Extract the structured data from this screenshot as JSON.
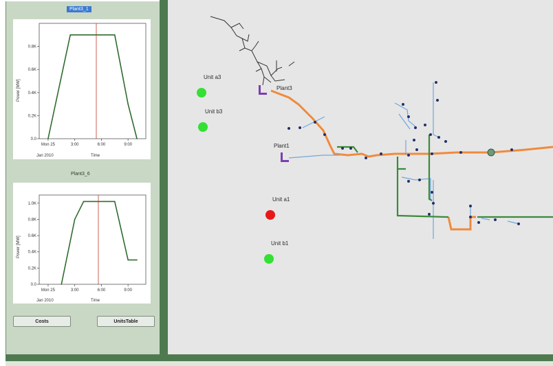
{
  "left_panel": {
    "chart1": {
      "title": "Plant3_1",
      "ylabel": "Power [MW]",
      "y_ticks": [
        "0.8K",
        "0.6K",
        "0.4K",
        "0.2K",
        "0.0"
      ],
      "x_ticks": [
        "Mon 25",
        "3:00",
        "6:00",
        "9:00"
      ],
      "x_sub": "Jan 2010",
      "xlabel": "Time"
    },
    "chart2": {
      "title": "Plant3_6",
      "ylabel": "Power [MW]",
      "y_ticks": [
        "1.0K",
        "0.8K",
        "0.6K",
        "0.4K",
        "0.2K",
        "0.0"
      ],
      "x_ticks": [
        "Mon 25",
        "3:00",
        "6:00",
        "9:00"
      ],
      "x_sub": "Jan 2010",
      "xlabel": "Time"
    },
    "buttons": {
      "costs": "Costs",
      "units_table": "UnitsTable"
    }
  },
  "chart_data": [
    {
      "type": "line",
      "title": "Plant3_1",
      "xlabel": "Time",
      "ylabel": "Power [MW]",
      "x": [
        1.0,
        3.5,
        8.5,
        10.0,
        11.0
      ],
      "series": [
        {
          "values": [
            0,
            900,
            900,
            300,
            0
          ]
        }
      ],
      "ylim": [
        0,
        1000
      ],
      "grid": false
    },
    {
      "type": "line",
      "title": "Plant3_6",
      "xlabel": "Time",
      "ylabel": "Power [MW]",
      "x": [
        2.5,
        4.0,
        5.0,
        8.5,
        10.0,
        11.0
      ],
      "series": [
        {
          "values": [
            0,
            800,
            1020,
            1020,
            300,
            300
          ]
        }
      ],
      "ylim": [
        0,
        1100
      ],
      "grid": false
    }
  ],
  "map": {
    "units": [
      {
        "label": "Unit a3",
        "status": "green"
      },
      {
        "label": "Unit b3",
        "status": "green"
      },
      {
        "label": "Unit a1",
        "status": "red"
      },
      {
        "label": "Unit b1",
        "status": "green"
      }
    ],
    "plants": [
      {
        "label": "Plant3"
      },
      {
        "label": "Plant1"
      }
    ],
    "colors": {
      "green_unit": "#33e033",
      "red_unit": "#e81818",
      "orange_line": "#f08a3c",
      "blue_line": "#6fa8dc",
      "green_line": "#3b8a3b",
      "purple_marker": "#7a3fb1"
    }
  }
}
